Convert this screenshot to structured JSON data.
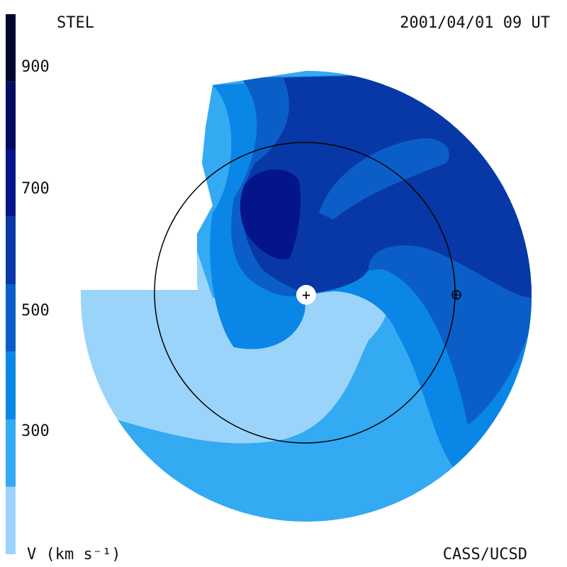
{
  "header": {
    "left_label": "STEL",
    "right_label": "2001/04/01 09 UT"
  },
  "footer": {
    "left_label": "V (km s⁻¹)",
    "right_label": "CASS/UCSD"
  },
  "colorbar": {
    "tick_labels": [
      "900",
      "700",
      "500",
      "300"
    ],
    "bands": [
      {
        "from": 200,
        "to": 300,
        "color": "#9bd4fb"
      },
      {
        "from": 300,
        "to": 400,
        "color": "#33aaf2"
      },
      {
        "from": 400,
        "to": 500,
        "color": "#0a86e6"
      },
      {
        "from": 500,
        "to": 600,
        "color": "#0b5ec8"
      },
      {
        "from": 600,
        "to": 700,
        "color": "#0838a6"
      },
      {
        "from": 700,
        "to": 800,
        "color": "#04158a"
      },
      {
        "from": 800,
        "to": 900,
        "color": "#020b5e"
      },
      {
        "from": 900,
        "to": 1000,
        "color": "#000530"
      }
    ]
  },
  "markers": {
    "sun_symbol": "+",
    "earth_icon": "earth-symbol-icon"
  }
}
